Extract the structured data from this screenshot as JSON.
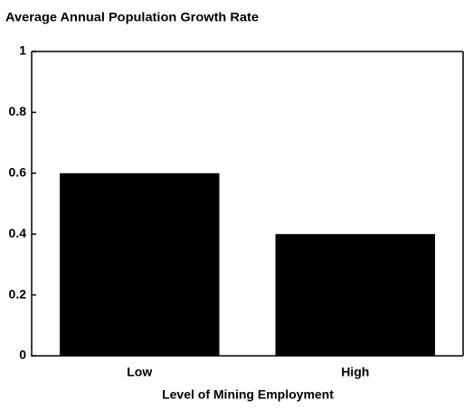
{
  "chart_data": {
    "type": "bar",
    "title": "Average Annual Population Growth Rate",
    "x_label": "Level of Mining Employment",
    "categories": [
      "Low",
      "High"
    ],
    "values": [
      0.6,
      0.4
    ],
    "color": "#000000",
    "ylim": [
      0,
      1
    ],
    "yticks": [
      0,
      0.2,
      0.4,
      0.6,
      0.8,
      1
    ],
    "grid": false
  }
}
